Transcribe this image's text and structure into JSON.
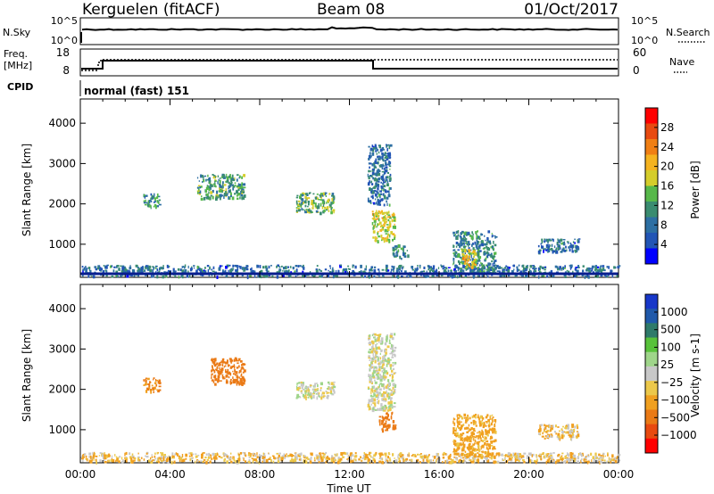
{
  "header": {
    "station": "Kerguelen (fitACF)",
    "beam": "Beam 08",
    "date": "01/Oct/2017"
  },
  "nsky_panel": {
    "left_label": "N.Sky",
    "right_label": "N.Search",
    "left_ticks": [
      "10^5",
      "10^0"
    ],
    "right_ticks": [
      "10^5",
      "10^0"
    ]
  },
  "freq_panel": {
    "left_label_line1": "Freq.",
    "left_label_line2": "[MHz]",
    "right_label": "Nave",
    "left_ticks": [
      "18",
      "8"
    ],
    "right_ticks": [
      "60",
      "0"
    ]
  },
  "cpid": {
    "label": "CPID",
    "text": "normal (fast) 151"
  },
  "colors": {
    "power_scale": [
      "#0000ff",
      "#2255b5",
      "#2d6fa3",
      "#3a8c70",
      "#57b84a",
      "#d5cd2b",
      "#f5b320",
      "#f07f14",
      "#e84a10",
      "#ff0000"
    ],
    "velocity_scale": [
      "#1737c9",
      "#2059aa",
      "#2f7a6a",
      "#58c23a",
      "#9fd58a",
      "#c8c8c8",
      "#ecc84a",
      "#f0a020",
      "#ea7a16",
      "#e84a10",
      "#ff0000"
    ]
  },
  "chart_data": [
    {
      "type": "heatmap",
      "panel": "power",
      "xlabel": "",
      "ylabel": "Slant Range [km]",
      "ylim": [
        180,
        4600
      ],
      "xlim_hours": [
        0,
        24
      ],
      "yticks": [
        1000,
        2000,
        3000,
        4000
      ],
      "colorbar": {
        "label": "Power [dB]",
        "min": 0,
        "max": 32,
        "ticks": [
          4,
          8,
          12,
          16,
          20,
          24,
          28
        ]
      },
      "features": [
        {
          "hours": [
            0.0,
            24.0
          ],
          "range_km": [
            220,
            500
          ],
          "value": 8
        },
        {
          "hours": [
            2.8,
            3.5
          ],
          "range_km": [
            1950,
            2300
          ],
          "value": 10
        },
        {
          "hours": [
            5.2,
            7.3
          ],
          "range_km": [
            2150,
            2750
          ],
          "value": 12
        },
        {
          "hours": [
            9.6,
            11.3
          ],
          "range_km": [
            1800,
            2300
          ],
          "value": 14
        },
        {
          "hours": [
            12.8,
            13.8
          ],
          "range_km": [
            2000,
            3500
          ],
          "value": 8
        },
        {
          "hours": [
            13.0,
            14.0
          ],
          "range_km": [
            1100,
            1850
          ],
          "value": 18
        },
        {
          "hours": [
            13.9,
            14.6
          ],
          "range_km": [
            650,
            1000
          ],
          "value": 10
        },
        {
          "hours": [
            16.6,
            18.5
          ],
          "range_km": [
            300,
            1350
          ],
          "value": 10
        },
        {
          "hours": [
            17.0,
            17.6
          ],
          "range_km": [
            450,
            900
          ],
          "value": 20
        },
        {
          "hours": [
            20.4,
            22.2
          ],
          "range_km": [
            800,
            1150
          ],
          "value": 8
        }
      ]
    },
    {
      "type": "heatmap",
      "panel": "velocity",
      "xlabel": "Time UT",
      "ylabel": "Slant Range [km]",
      "ylim": [
        180,
        4600
      ],
      "xlim_hours": [
        0,
        24
      ],
      "xticks": [
        "00:00",
        "04:00",
        "08:00",
        "12:00",
        "16:00",
        "20:00",
        "00:00"
      ],
      "yticks": [
        1000,
        2000,
        3000,
        4000
      ],
      "colorbar": {
        "label": "Velocity [m s-1]",
        "ticks": [
          "1000",
          "500",
          "100",
          "25",
          "−25",
          "−100",
          "−500",
          "−1000"
        ]
      },
      "features": [
        {
          "hours": [
            0.0,
            24.0
          ],
          "range_km": [
            220,
            450
          ],
          "value": -50
        },
        {
          "hours": [
            2.8,
            3.5
          ],
          "range_km": [
            1950,
            2300
          ],
          "value": -200
        },
        {
          "hours": [
            5.8,
            7.3
          ],
          "range_km": [
            2150,
            2800
          ],
          "value": -400
        },
        {
          "hours": [
            9.6,
            11.3
          ],
          "range_km": [
            1800,
            2200
          ],
          "value": 0
        },
        {
          "hours": [
            12.8,
            14.0
          ],
          "range_km": [
            1500,
            3400
          ],
          "value": 0
        },
        {
          "hours": [
            13.3,
            14.0
          ],
          "range_km": [
            1000,
            1450
          ],
          "value": -400
        },
        {
          "hours": [
            16.6,
            18.5
          ],
          "range_km": [
            350,
            1400
          ],
          "value": -100
        },
        {
          "hours": [
            20.4,
            22.2
          ],
          "range_km": [
            800,
            1150
          ],
          "value": -50
        }
      ]
    }
  ]
}
